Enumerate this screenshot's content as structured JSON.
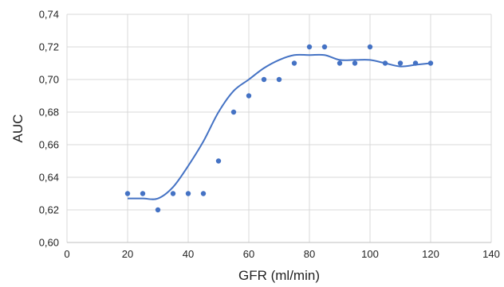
{
  "chart_data": {
    "type": "scatter",
    "title": "",
    "xlabel": "GFR (ml/min)",
    "ylabel": "AUC",
    "xlim": [
      0,
      140
    ],
    "ylim": [
      0.6,
      0.74
    ],
    "x_ticks": [
      "0",
      "20",
      "40",
      "60",
      "80",
      "100",
      "120",
      "140"
    ],
    "y_ticks": [
      "0,60",
      "0,62",
      "0,64",
      "0,66",
      "0,68",
      "0,70",
      "0,72",
      "0,74"
    ],
    "grid": "vertical and horizontal",
    "legend": "none",
    "colors": {
      "points": "#4472c4",
      "line": "#4472c4",
      "grid": "#d9d9d9"
    },
    "series": [
      {
        "kind": "points",
        "x": [
          20,
          25,
          30,
          35,
          40,
          45,
          50,
          55,
          60,
          65,
          70,
          75,
          80,
          85,
          90,
          95,
          100,
          105,
          110,
          115,
          120
        ],
        "y": [
          0.63,
          0.63,
          0.62,
          0.63,
          0.63,
          0.63,
          0.65,
          0.68,
          0.69,
          0.7,
          0.7,
          0.71,
          0.72,
          0.72,
          0.71,
          0.71,
          0.72,
          0.71,
          0.71,
          0.71,
          0.71
        ]
      },
      {
        "kind": "line",
        "x": [
          20,
          25,
          30,
          35,
          40,
          45,
          50,
          55,
          60,
          65,
          70,
          75,
          80,
          85,
          90,
          95,
          100,
          105,
          110,
          115,
          120
        ],
        "y": [
          0.627,
          0.627,
          0.627,
          0.634,
          0.647,
          0.662,
          0.68,
          0.693,
          0.7,
          0.707,
          0.712,
          0.715,
          0.715,
          0.715,
          0.712,
          0.712,
          0.712,
          0.71,
          0.708,
          0.709,
          0.71
        ]
      }
    ]
  }
}
